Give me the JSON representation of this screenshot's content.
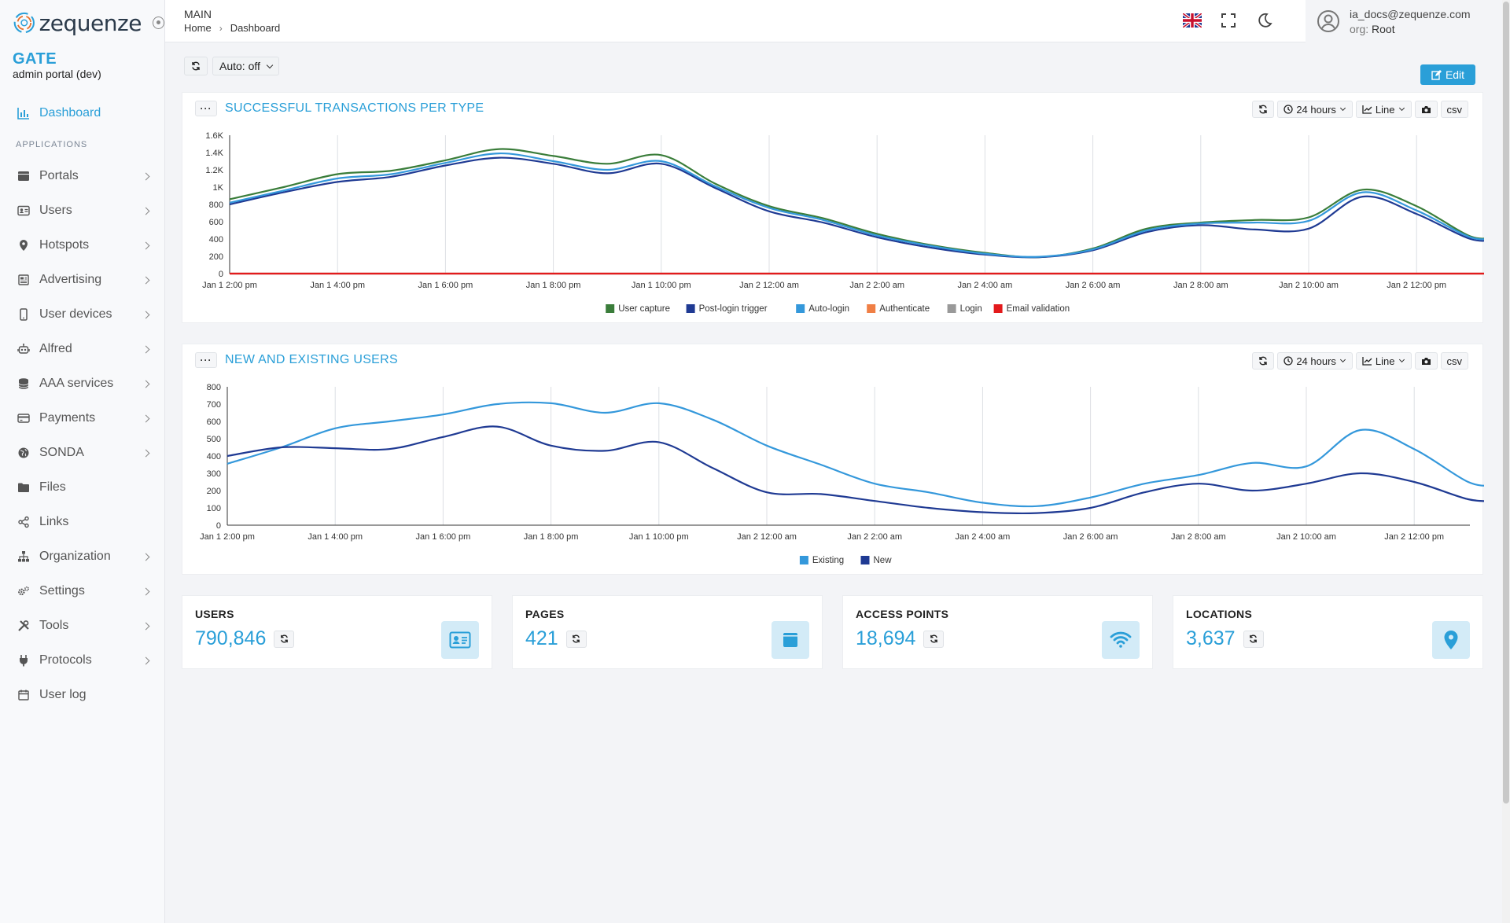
{
  "app": {
    "logo_text": "zequenze",
    "brand_title": "GATE",
    "brand_subtitle": "admin portal (dev)"
  },
  "sidebar": {
    "dashboard_label": "Dashboard",
    "section_label": "APPLICATIONS",
    "items": [
      {
        "label": "Portals",
        "icon": "portal-icon",
        "chevron": true
      },
      {
        "label": "Users",
        "icon": "id-card-icon",
        "chevron": true
      },
      {
        "label": "Hotspots",
        "icon": "map-pin-icon",
        "chevron": true
      },
      {
        "label": "Advertising",
        "icon": "newspaper-icon",
        "chevron": true
      },
      {
        "label": "User devices",
        "icon": "mobile-icon",
        "chevron": true
      },
      {
        "label": "Alfred",
        "icon": "robot-icon",
        "chevron": true
      },
      {
        "label": "AAA services",
        "icon": "database-icon",
        "chevron": true
      },
      {
        "label": "Payments",
        "icon": "credit-card-icon",
        "chevron": true
      },
      {
        "label": "SONDA",
        "icon": "globe-icon",
        "chevron": true
      },
      {
        "label": "Files",
        "icon": "folder-icon",
        "chevron": false
      },
      {
        "label": "Links",
        "icon": "share-icon",
        "chevron": false
      },
      {
        "label": "Organization",
        "icon": "sitemap-icon",
        "chevron": true
      },
      {
        "label": "Settings",
        "icon": "cogs-icon",
        "chevron": true
      },
      {
        "label": "Tools",
        "icon": "tools-icon",
        "chevron": true
      },
      {
        "label": "Protocols",
        "icon": "plug-icon",
        "chevron": true
      },
      {
        "label": "User log",
        "icon": "calendar-icon",
        "chevron": false
      }
    ]
  },
  "header": {
    "title": "MAIN",
    "breadcrumb_home": "Home",
    "breadcrumb_current": "Dashboard",
    "user_email": "ia_docs@zequenze.com",
    "org_label": "org:",
    "org_value": "Root"
  },
  "toolbar": {
    "auto_label": "Auto: off",
    "edit_label": "Edit"
  },
  "panel_tools": {
    "range_label": "24 hours",
    "type_label": "Line",
    "csv_label": "csv"
  },
  "colors": {
    "accent": "#2a9fd8",
    "user_capture": "#3a7d3a",
    "post_login": "#1f3a93",
    "auto_login": "#3498db",
    "authenticate": "#f07f45",
    "login": "#999999",
    "email_validation": "#e31a1c",
    "existing": "#3498db",
    "new": "#1f3a93"
  },
  "chart_data": [
    {
      "type": "line",
      "title": "SUCCESSFUL TRANSACTIONS PER TYPE",
      "x_ticks": [
        "Jan 1 2:00 pm",
        "Jan 1 4:00 pm",
        "Jan 1 6:00 pm",
        "Jan 1 8:00 pm",
        "Jan 1 10:00 pm",
        "Jan 2 12:00 am",
        "Jan 2 2:00 am",
        "Jan 2 4:00 am",
        "Jan 2 6:00 am",
        "Jan 2 8:00 am",
        "Jan 2 10:00 am",
        "Jan 2 12:00 pm"
      ],
      "x_hours": [
        0,
        1,
        2,
        3,
        4,
        5,
        6,
        7,
        8,
        9,
        10,
        11,
        12,
        13,
        14,
        15,
        16,
        17,
        18,
        19,
        20,
        21,
        22,
        23,
        23.5
      ],
      "y_ticks": [
        "0",
        "200",
        "400",
        "600",
        "800",
        "1K",
        "1.2K",
        "1.4K",
        "1.6K"
      ],
      "ylim": [
        0,
        1600
      ],
      "legend_position": "bottom",
      "series": [
        {
          "name": "User capture",
          "color": "#3a7d3a",
          "values": [
            860,
            1000,
            1150,
            1190,
            1310,
            1440,
            1360,
            1270,
            1370,
            1040,
            780,
            640,
            460,
            330,
            240,
            190,
            290,
            520,
            590,
            620,
            650,
            970,
            780,
            430,
            430
          ]
        },
        {
          "name": "Post-login trigger",
          "color": "#1f3a93",
          "values": [
            800,
            940,
            1060,
            1120,
            1250,
            1340,
            1270,
            1160,
            1270,
            990,
            720,
            590,
            420,
            300,
            220,
            190,
            270,
            480,
            560,
            510,
            520,
            890,
            690,
            400,
            400
          ]
        },
        {
          "name": "Auto-login",
          "color": "#3498db",
          "values": [
            820,
            960,
            1100,
            1150,
            1280,
            1390,
            1300,
            1200,
            1300,
            1010,
            760,
            620,
            440,
            320,
            230,
            195,
            280,
            500,
            580,
            590,
            610,
            940,
            730,
            420,
            420
          ]
        },
        {
          "name": "Authenticate",
          "color": "#f07f45",
          "values": [
            0,
            0,
            0,
            0,
            0,
            0,
            0,
            0,
            0,
            0,
            0,
            0,
            0,
            0,
            0,
            0,
            0,
            0,
            0,
            0,
            0,
            0,
            0,
            0,
            0
          ]
        },
        {
          "name": "Login",
          "color": "#999999",
          "values": [
            0,
            0,
            0,
            0,
            0,
            0,
            0,
            0,
            0,
            0,
            0,
            0,
            0,
            0,
            0,
            0,
            0,
            0,
            0,
            0,
            0,
            0,
            0,
            0,
            0
          ]
        },
        {
          "name": "Email validation",
          "color": "#e31a1c",
          "values": [
            0,
            0,
            0,
            0,
            0,
            0,
            0,
            0,
            0,
            0,
            0,
            0,
            0,
            0,
            0,
            0,
            0,
            0,
            0,
            0,
            0,
            0,
            0,
            0,
            0
          ]
        }
      ]
    },
    {
      "type": "line",
      "title": "NEW AND EXISTING USERS",
      "x_ticks": [
        "Jan 1 2:00 pm",
        "Jan 1 4:00 pm",
        "Jan 1 6:00 pm",
        "Jan 1 8:00 pm",
        "Jan 1 10:00 pm",
        "Jan 2 12:00 am",
        "Jan 2 2:00 am",
        "Jan 2 4:00 am",
        "Jan 2 6:00 am",
        "Jan 2 8:00 am",
        "Jan 2 10:00 am",
        "Jan 2 12:00 pm"
      ],
      "x_hours": [
        0,
        1,
        2,
        3,
        4,
        5,
        6,
        7,
        8,
        9,
        10,
        11,
        12,
        13,
        14,
        15,
        16,
        17,
        18,
        19,
        20,
        21,
        22,
        23,
        23.5
      ],
      "y_ticks": [
        "0",
        "100",
        "200",
        "300",
        "400",
        "500",
        "600",
        "700",
        "800"
      ],
      "ylim": [
        0,
        800
      ],
      "legend_position": "bottom",
      "series": [
        {
          "name": "Existing",
          "color": "#3498db",
          "values": [
            355,
            450,
            560,
            600,
            640,
            700,
            705,
            650,
            705,
            610,
            460,
            350,
            240,
            190,
            130,
            110,
            160,
            240,
            290,
            360,
            340,
            550,
            440,
            250,
            230
          ]
        },
        {
          "name": "New",
          "color": "#1f3a93",
          "values": [
            400,
            450,
            445,
            440,
            510,
            570,
            460,
            430,
            480,
            330,
            190,
            180,
            140,
            100,
            75,
            70,
            100,
            190,
            240,
            200,
            240,
            300,
            250,
            150,
            140
          ]
        }
      ]
    }
  ],
  "stats": [
    {
      "title": "USERS",
      "value": "790,846",
      "icon": "id-card-icon"
    },
    {
      "title": "PAGES",
      "value": "421",
      "icon": "page-icon"
    },
    {
      "title": "ACCESS POINTS",
      "value": "18,694",
      "icon": "wifi-icon"
    },
    {
      "title": "LOCATIONS",
      "value": "3,637",
      "icon": "map-pin-icon"
    }
  ]
}
